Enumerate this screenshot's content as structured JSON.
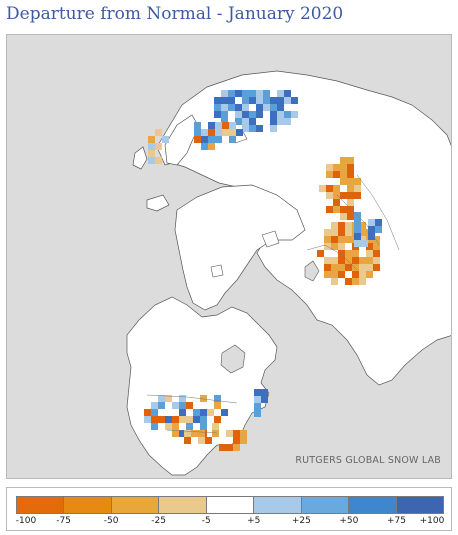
{
  "title": "Departure from Normal - January 2020",
  "map": {
    "credit": "RUTGERS GLOBAL SNOW LAB",
    "projection": "north-polar-stereographic",
    "colors": {
      "ocean": "#dcdcdc",
      "land": "#ffffff",
      "coastline": "#555555",
      "deficit_strong": "#e0620a",
      "deficit": "#e8a642",
      "surplus": "#5b9fd9",
      "surplus_strong": "#3d6fbf"
    },
    "anomaly_regions": [
      {
        "region": "western Europe / Scandinavia",
        "tendency": "mixed deficit and surplus"
      },
      {
        "region": "western Russia",
        "tendency": "surplus"
      },
      {
        "region": "central Asia",
        "tendency": "strong deficit"
      },
      {
        "region": "western North America",
        "tendency": "mixed"
      },
      {
        "region": "central/eastern United States",
        "tendency": "deficit"
      }
    ]
  },
  "legend": {
    "swatches": [
      {
        "color": "#e36b0a"
      },
      {
        "color": "#e68a14"
      },
      {
        "color": "#e8a73a"
      },
      {
        "color": "#e9c98d"
      },
      {
        "color": "#ffffff"
      },
      {
        "color": "#a9c9e8"
      },
      {
        "color": "#6aa9de"
      },
      {
        "color": "#3f86cc"
      },
      {
        "color": "#3c66b0"
      }
    ],
    "labels": [
      "-100",
      "-75",
      "-50",
      "-25",
      "-5",
      "+5",
      "+25",
      "+50",
      "+75",
      "+100"
    ]
  }
}
